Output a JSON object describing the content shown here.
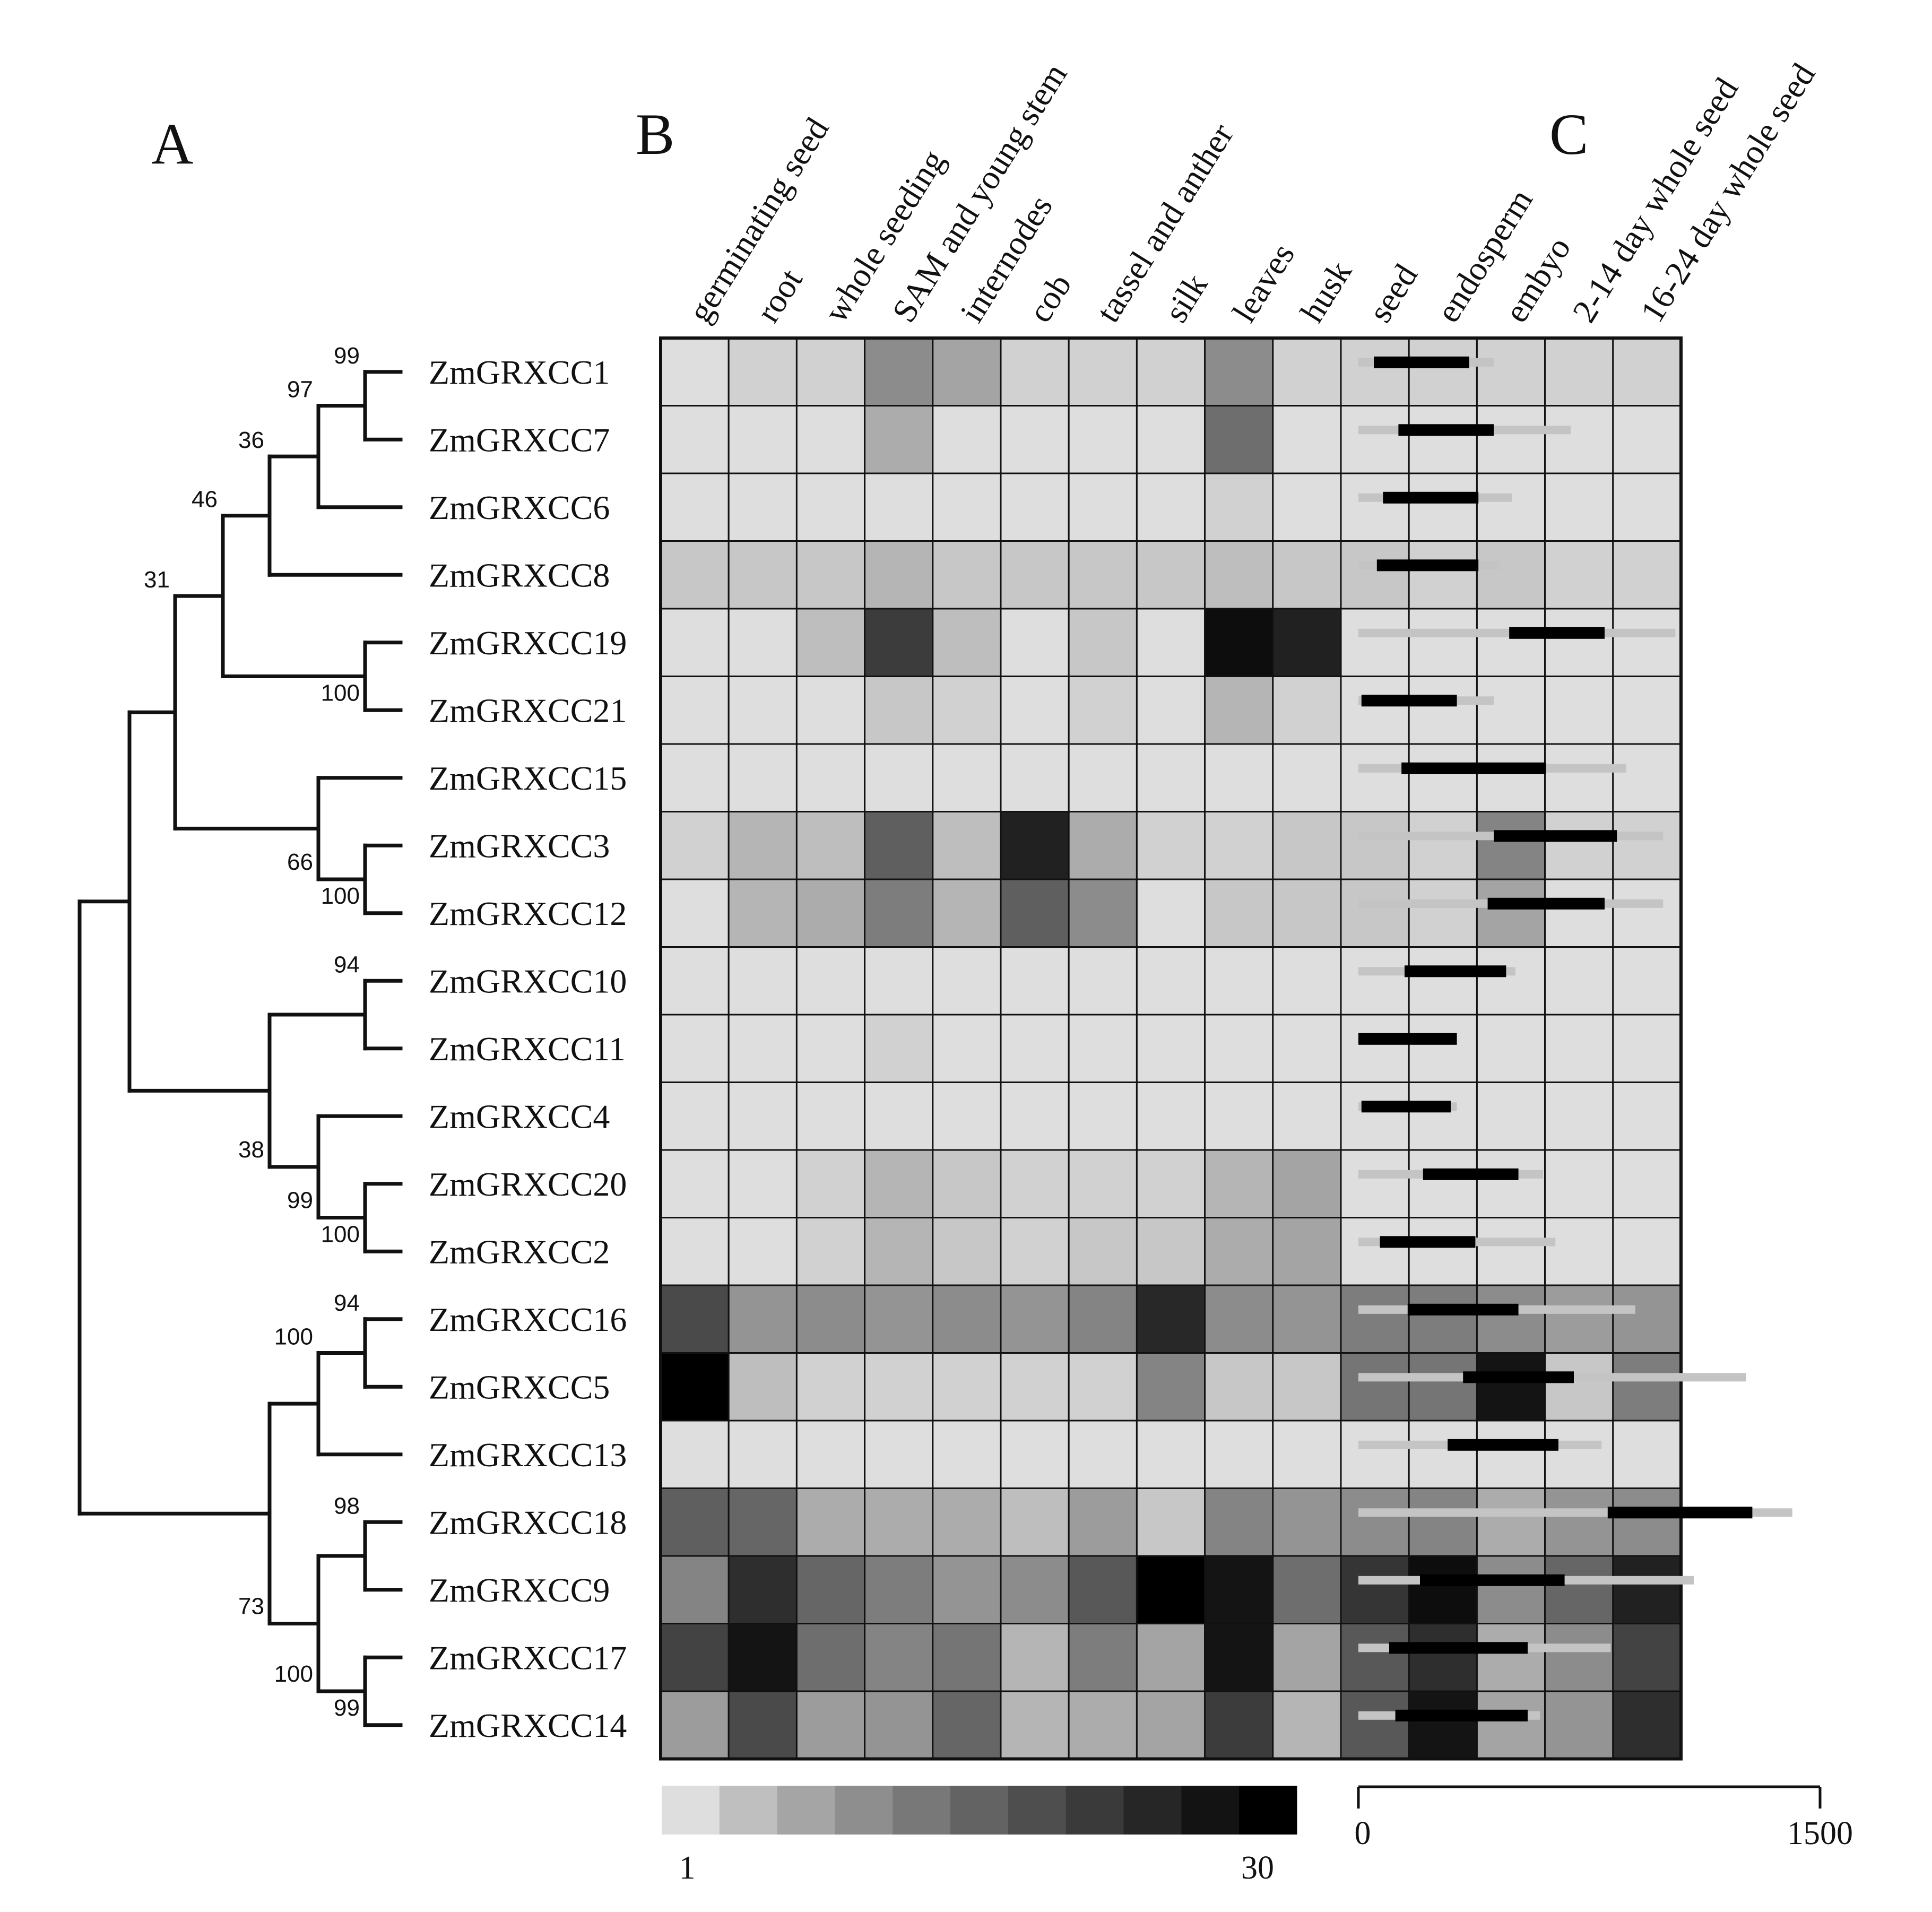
{
  "panels": {
    "A": "A",
    "B": "B",
    "C": "C"
  },
  "chart_data": [
    {
      "type": "dendrogram",
      "panel": "A",
      "leaves": [
        "ZmGRXCC1",
        "ZmGRXCC7",
        "ZmGRXCC6",
        "ZmGRXCC8",
        "ZmGRXCC19",
        "ZmGRXCC21",
        "ZmGRXCC15",
        "ZmGRXCC3",
        "ZmGRXCC12",
        "ZmGRXCC10",
        "ZmGRXCC11",
        "ZmGRXCC4",
        "ZmGRXCC20",
        "ZmGRXCC2",
        "ZmGRXCC16",
        "ZmGRXCC5",
        "ZmGRXCC13",
        "ZmGRXCC18",
        "ZmGRXCC9",
        "ZmGRXCC17",
        "ZmGRXCC14"
      ],
      "bootstrap_values": [
        "99",
        "97",
        "36",
        "46",
        "31",
        "100",
        "66",
        "100",
        "94",
        "38",
        "99",
        "100",
        "94",
        "100",
        "73",
        "98",
        "100",
        "99"
      ]
    },
    {
      "type": "heatmap",
      "panel": "B",
      "columns": [
        "germinating seed",
        "root",
        "whole seeding",
        "SAM and young stem",
        "internodes",
        "cob",
        "tassel and anther",
        "silk",
        "leaves",
        "husk",
        "seed",
        "endosperm",
        "embyo",
        "2-14 day whole seed",
        "16-24 day whole seed"
      ],
      "rows": [
        "ZmGRXCC1",
        "ZmGRXCC7",
        "ZmGRXCC6",
        "ZmGRXCC8",
        "ZmGRXCC19",
        "ZmGRXCC21",
        "ZmGRXCC15",
        "ZmGRXCC3",
        "ZmGRXCC12",
        "ZmGRXCC10",
        "ZmGRXCC11",
        "ZmGRXCC4",
        "ZmGRXCC20",
        "ZmGRXCC2",
        "ZmGRXCC16",
        "ZmGRXCC5",
        "ZmGRXCC13",
        "ZmGRXCC18",
        "ZmGRXCC9",
        "ZmGRXCC17",
        "ZmGRXCC14"
      ],
      "values": [
        [
          1,
          2,
          2,
          10,
          7,
          2,
          2,
          2,
          10,
          2,
          2,
          2,
          2,
          2,
          2
        ],
        [
          1,
          1,
          1,
          6,
          1,
          1,
          1,
          1,
          14,
          1,
          1,
          1,
          1,
          1,
          1
        ],
        [
          1,
          1,
          1,
          1,
          1,
          1,
          1,
          1,
          2,
          1,
          1,
          1,
          1,
          1,
          1
        ],
        [
          3,
          3,
          3,
          5,
          3,
          3,
          3,
          3,
          4,
          3,
          3,
          2,
          3,
          2,
          2
        ],
        [
          1,
          1,
          4,
          21,
          4,
          1,
          3,
          1,
          28,
          25,
          1,
          1,
          1,
          1,
          1
        ],
        [
          1,
          1,
          1,
          3,
          2,
          1,
          2,
          1,
          5,
          2,
          1,
          1,
          1,
          1,
          1
        ],
        [
          1,
          1,
          1,
          1,
          1,
          1,
          1,
          1,
          1,
          1,
          1,
          1,
          1,
          1,
          1
        ],
        [
          2,
          5,
          4,
          16,
          4,
          25,
          6,
          2,
          2,
          3,
          3,
          2,
          11,
          2,
          2
        ],
        [
          1,
          5,
          6,
          12,
          5,
          16,
          10,
          1,
          3,
          3,
          3,
          2,
          7,
          1,
          1
        ],
        [
          1,
          1,
          1,
          1,
          1,
          1,
          1,
          1,
          1,
          1,
          1,
          1,
          1,
          1,
          1
        ],
        [
          1,
          1,
          1,
          2,
          1,
          1,
          1,
          1,
          1,
          1,
          1,
          1,
          1,
          1,
          1
        ],
        [
          1,
          1,
          1,
          1,
          1,
          1,
          1,
          1,
          1,
          1,
          1,
          1,
          1,
          1,
          1
        ],
        [
          1,
          1,
          2,
          5,
          3,
          2,
          2,
          2,
          5,
          7,
          1,
          1,
          1,
          1,
          1
        ],
        [
          1,
          1,
          2,
          5,
          3,
          2,
          3,
          3,
          6,
          7,
          1,
          1,
          1,
          1,
          1
        ],
        [
          19,
          9,
          10,
          9,
          10,
          9,
          11,
          24,
          10,
          9,
          12,
          12,
          10,
          8,
          9
        ],
        [
          30,
          4,
          2,
          2,
          2,
          2,
          2,
          11,
          3,
          3,
          13,
          13,
          27,
          3,
          12
        ],
        [
          1,
          1,
          1,
          1,
          1,
          1,
          1,
          1,
          1,
          1,
          1,
          1,
          1,
          1,
          1
        ],
        [
          16,
          15,
          6,
          6,
          6,
          4,
          8,
          3,
          11,
          9,
          10,
          11,
          6,
          9,
          10
        ],
        [
          11,
          23,
          15,
          12,
          9,
          10,
          17,
          30,
          27,
          14,
          22,
          28,
          10,
          15,
          25
        ],
        [
          20,
          27,
          14,
          11,
          13,
          5,
          12,
          7,
          27,
          7,
          17,
          23,
          6,
          10,
          20
        ],
        [
          8,
          19,
          8,
          9,
          15,
          5,
          6,
          7,
          21,
          5,
          17,
          27,
          7,
          9,
          23
        ]
      ],
      "colorbar": {
        "min": 1,
        "max": 30,
        "min_label": "1",
        "max_label": "30"
      }
    },
    {
      "type": "gene-structure",
      "panel": "C",
      "axis": {
        "min": 0,
        "max": 1500,
        "min_label": "0",
        "max_label": "1500"
      },
      "genes": [
        {
          "name": "ZmGRXCC1",
          "total": [
            0,
            440
          ],
          "cds": [
            50,
            360
          ]
        },
        {
          "name": "ZmGRXCC7",
          "total": [
            0,
            690
          ],
          "cds": [
            130,
            440
          ]
        },
        {
          "name": "ZmGRXCC6",
          "total": [
            0,
            500
          ],
          "cds": [
            80,
            390
          ]
        },
        {
          "name": "ZmGRXCC8",
          "total": [
            0,
            460
          ],
          "cds": [
            60,
            390
          ]
        },
        {
          "name": "ZmGRXCC19",
          "total": [
            0,
            1030
          ],
          "cds": [
            490,
            800
          ]
        },
        {
          "name": "ZmGRXCC21",
          "total": [
            0,
            440
          ],
          "cds": [
            10,
            320
          ]
        },
        {
          "name": "ZmGRXCC15",
          "total": [
            0,
            870
          ],
          "cds": [
            140,
            610
          ]
        },
        {
          "name": "ZmGRXCC3",
          "total": [
            0,
            990
          ],
          "cds": [
            440,
            840
          ]
        },
        {
          "name": "ZmGRXCC12",
          "total": [
            0,
            990
          ],
          "cds": [
            420,
            800
          ]
        },
        {
          "name": "ZmGRXCC10",
          "total": [
            0,
            510
          ],
          "cds": [
            150,
            480
          ]
        },
        {
          "name": "ZmGRXCC11",
          "total": [
            0,
            320
          ],
          "cds": [
            0,
            320
          ]
        },
        {
          "name": "ZmGRXCC4",
          "total": [
            0,
            320
          ],
          "cds": [
            10,
            300
          ]
        },
        {
          "name": "ZmGRXCC20",
          "total": [
            0,
            600
          ],
          "cds": [
            210,
            520
          ]
        },
        {
          "name": "ZmGRXCC2",
          "total": [
            0,
            640
          ],
          "cds": [
            70,
            380
          ]
        },
        {
          "name": "ZmGRXCC16",
          "total": [
            0,
            900
          ],
          "cds": [
            160,
            520
          ]
        },
        {
          "name": "ZmGRXCC5",
          "total": [
            0,
            1260
          ],
          "cds": [
            340,
            700
          ]
        },
        {
          "name": "ZmGRXCC13",
          "total": [
            0,
            790
          ],
          "cds": [
            290,
            650
          ]
        },
        {
          "name": "ZmGRXCC18",
          "total": [
            0,
            1410
          ],
          "cds": [
            810,
            1280
          ]
        },
        {
          "name": "ZmGRXCC9",
          "total": [
            0,
            1090
          ],
          "cds": [
            200,
            670
          ]
        },
        {
          "name": "ZmGRXCC17",
          "total": [
            0,
            820
          ],
          "cds": [
            100,
            550
          ]
        },
        {
          "name": "ZmGRXCC14",
          "total": [
            0,
            590
          ],
          "cds": [
            120,
            550
          ]
        }
      ]
    }
  ]
}
